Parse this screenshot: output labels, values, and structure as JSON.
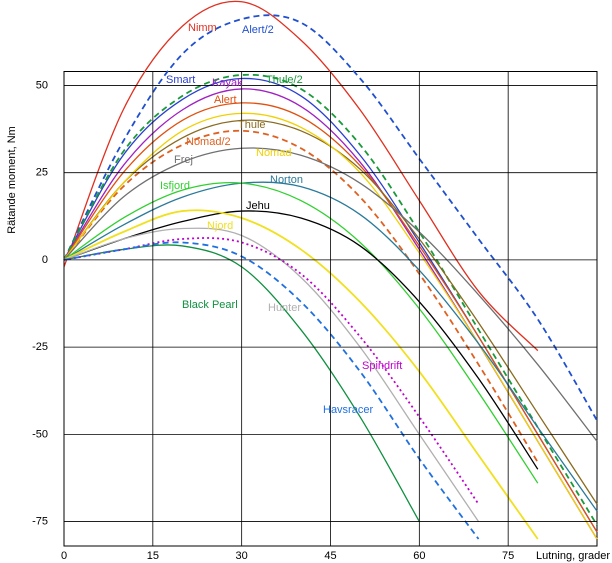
{
  "chart_data": {
    "type": "line",
    "x_label": "Lutning, grader",
    "y_label": "Rätande moment, Nm",
    "x": [
      0,
      10,
      20,
      30,
      40,
      50,
      60,
      70,
      80,
      90
    ],
    "xlim": [
      0,
      90
    ],
    "ylim": [
      -82,
      54
    ],
    "xticks": [
      0,
      15,
      30,
      45,
      60,
      75
    ],
    "yticks": [
      -75,
      -50,
      -25,
      0,
      25,
      50
    ],
    "grid": true,
    "series": [
      {
        "name": "Nimm",
        "color": "#e03020",
        "dash": "solid",
        "values": [
          -2,
          43,
          67,
          74,
          63,
          43,
          17,
          -9,
          -26,
          null
        ]
      },
      {
        "name": "Alert/2",
        "color": "#2050d0",
        "dash": "dashed",
        "values": [
          0,
          34,
          59,
          69,
          68,
          52,
          29,
          6,
          -17,
          -46
        ]
      },
      {
        "name": "Smart",
        "color": "#2a3fd0",
        "dash": "solid",
        "values": [
          0,
          30,
          46,
          52,
          47,
          30,
          5,
          -22,
          -50,
          -78
        ]
      },
      {
        "name": "Kayak",
        "color": "#a020c0",
        "dash": "solid",
        "values": [
          0,
          27,
          43,
          49,
          44,
          28,
          3,
          -24,
          -52,
          -80
        ]
      },
      {
        "name": "Thule/2",
        "color": "#1a9a3a",
        "dash": "dashed",
        "values": [
          0,
          31,
          47,
          53,
          49,
          33,
          8,
          -20,
          -48,
          -76
        ]
      },
      {
        "name": "Alert",
        "color": "#e05010",
        "dash": "solid",
        "values": [
          0,
          25,
          40,
          45,
          41,
          27,
          4,
          -22,
          -50,
          -78
        ]
      },
      {
        "name": "Thule",
        "color": "#8a6a20",
        "dash": "solid",
        "values": [
          0,
          22,
          35,
          40,
          37,
          26,
          6,
          -18,
          -44,
          -70
        ]
      },
      {
        "name": "Nomad/2",
        "color": "#e06020",
        "dash": "dashed",
        "values": [
          0,
          21,
          33,
          37,
          32,
          18,
          -4,
          -30,
          -58,
          null
        ]
      },
      {
        "name": "Nomad",
        "color": "#f0d000",
        "dash": "solid",
        "values": [
          0,
          22,
          37,
          42,
          38,
          25,
          2,
          -24,
          -52,
          -80
        ]
      },
      {
        "name": "Frej",
        "color": "#707070",
        "dash": "solid",
        "values": [
          0,
          18,
          28,
          32,
          30,
          22,
          8,
          -10,
          -30,
          -52
        ]
      },
      {
        "name": "Norton",
        "color": "#2a7a9a",
        "dash": "solid",
        "values": [
          0,
          10,
          18,
          22,
          21,
          13,
          -3,
          -24,
          -48,
          -72
        ]
      },
      {
        "name": "Isfjord",
        "color": "#30d030",
        "dash": "solid",
        "values": [
          0,
          12,
          20,
          22,
          17,
          5,
          -14,
          -38,
          -64,
          null
        ]
      },
      {
        "name": "Jehu",
        "color": "#000000",
        "dash": "solid",
        "values": [
          0,
          6,
          11,
          14,
          12,
          4,
          -12,
          -34,
          -60,
          null
        ]
      },
      {
        "name": "Njord",
        "color": "#f0e020",
        "dash": "solid",
        "values": [
          0,
          8,
          14,
          12,
          3,
          -12,
          -32,
          -56,
          -80,
          null
        ]
      },
      {
        "name": "Black Pearl",
        "color": "#109040",
        "dash": "solid",
        "values": [
          0,
          3,
          4,
          -2,
          -20,
          -45,
          -75,
          null,
          null,
          null
        ]
      },
      {
        "name": "Hunter",
        "color": "#b0b0b0",
        "dash": "solid",
        "values": [
          0,
          6,
          9,
          7,
          -5,
          -25,
          -50,
          -75,
          null,
          null
        ]
      },
      {
        "name": "Spindrift",
        "color": "#c000d0",
        "dash": "dotted",
        "values": [
          0,
          3,
          6,
          5,
          -4,
          -22,
          -45,
          -70,
          null,
          null
        ]
      },
      {
        "name": "Havsracer",
        "color": "#2070e0",
        "dash": "dashed",
        "values": [
          0,
          3,
          5,
          1,
          -12,
          -32,
          -57,
          -80,
          null,
          null
        ]
      }
    ]
  }
}
